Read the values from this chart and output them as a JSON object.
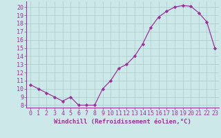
{
  "x": [
    0,
    1,
    2,
    3,
    4,
    5,
    6,
    7,
    8,
    9,
    10,
    11,
    12,
    13,
    14,
    15,
    16,
    17,
    18,
    19,
    20,
    21,
    22,
    23
  ],
  "y": [
    10.5,
    10.0,
    9.5,
    9.0,
    8.5,
    9.0,
    8.0,
    8.0,
    8.0,
    10.0,
    11.0,
    12.5,
    13.0,
    14.0,
    15.5,
    17.5,
    18.8,
    19.5,
    20.0,
    20.2,
    20.1,
    19.3,
    18.2,
    15.0
  ],
  "xlim": [
    -0.5,
    23.5
  ],
  "ylim": [
    7.7,
    20.7
  ],
  "yticks": [
    8,
    9,
    10,
    11,
    12,
    13,
    14,
    15,
    16,
    17,
    18,
    19,
    20
  ],
  "xticks": [
    0,
    1,
    2,
    3,
    4,
    5,
    6,
    7,
    8,
    9,
    10,
    11,
    12,
    13,
    14,
    15,
    16,
    17,
    18,
    19,
    20,
    21,
    22,
    23
  ],
  "xlabel": "Windchill (Refroidissement éolien,°C)",
  "line_color": "#993399",
  "marker": "D",
  "marker_size": 2.2,
  "bg_color": "#cce8e8",
  "grid_color": "#aacccc",
  "label_fontsize": 6.5,
  "tick_fontsize": 6.0
}
